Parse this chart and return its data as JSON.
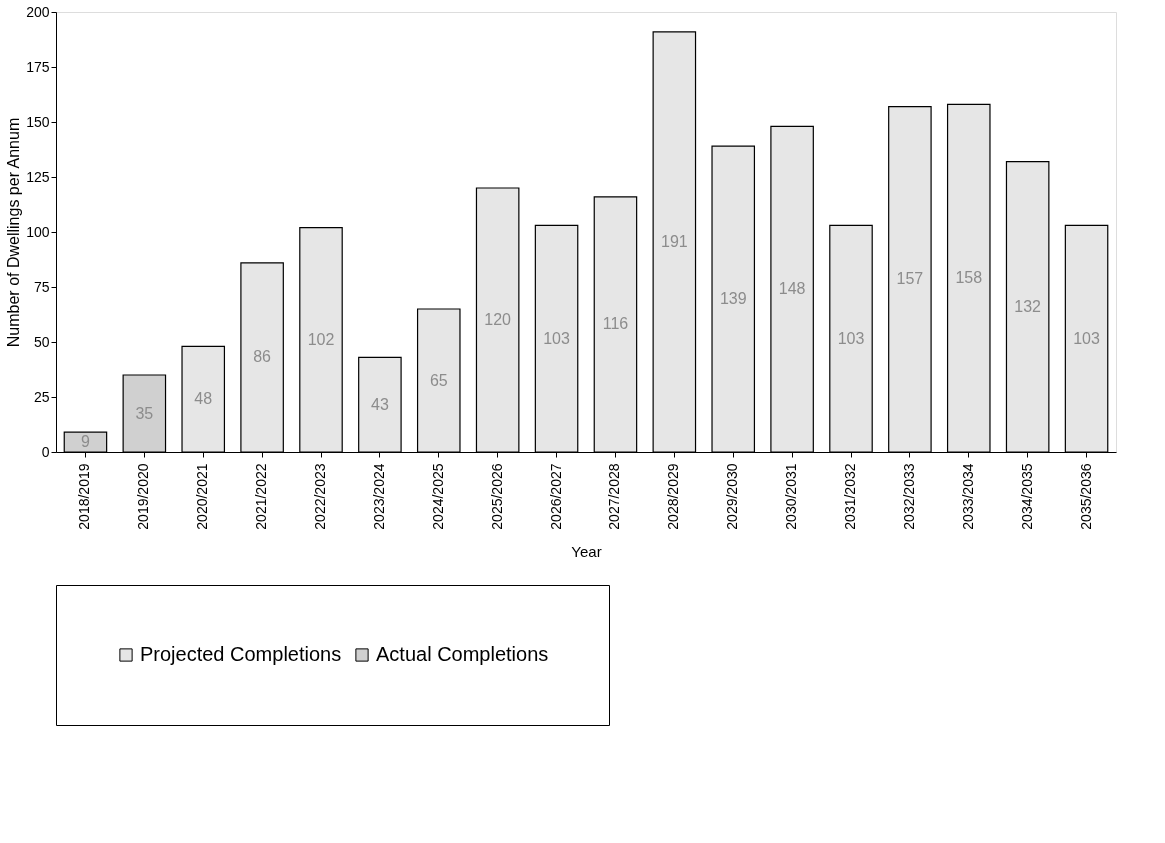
{
  "chart_data": {
    "type": "bar",
    "xlabel": "Year",
    "ylabel": "Number of Dwellings per Annum",
    "categories": [
      "2018/2019",
      "2019/2020",
      "2020/2021",
      "2021/2022",
      "2022/2023",
      "2023/2024",
      "2024/2025",
      "2025/2026",
      "2026/2027",
      "2027/2028",
      "2028/2029",
      "2029/2030",
      "2030/2031",
      "2031/2032",
      "2032/2033",
      "2033/2034",
      "2034/2035",
      "2035/2036"
    ],
    "series": [
      {
        "name": "Projected Completions",
        "color": "#e6e6e6",
        "values": [
          null,
          null,
          48,
          86,
          102,
          43,
          65,
          120,
          103,
          116,
          191,
          139,
          148,
          103,
          157,
          158,
          132,
          103
        ]
      },
      {
        "name": "Actual Completions",
        "color": "#d0d0d0",
        "values": [
          9,
          35,
          null,
          null,
          null,
          null,
          null,
          null,
          null,
          null,
          null,
          null,
          null,
          null,
          null,
          null,
          null,
          null
        ]
      }
    ],
    "ylim": [
      0,
      200
    ],
    "yticks": [
      0,
      25,
      50,
      75,
      100,
      125,
      150,
      175,
      200
    ],
    "grid": false,
    "legend": "bottom",
    "data_labels": true
  }
}
